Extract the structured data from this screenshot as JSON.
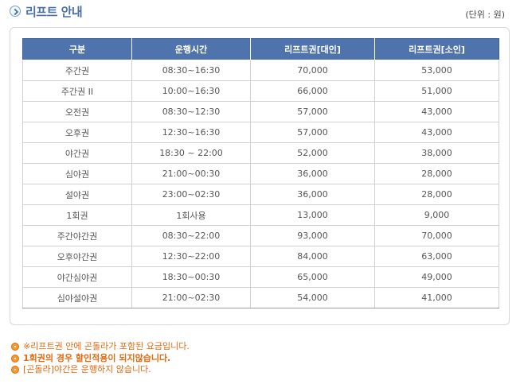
{
  "header": {
    "title": "리프트 안내",
    "unit_note": "(단위 : 원)"
  },
  "table": {
    "columns": [
      "구분",
      "운행시간",
      "리프트권[대인]",
      "리프트권[소인]"
    ],
    "rows": [
      [
        "주간권",
        "08:30~16:30",
        "70,000",
        "53,000"
      ],
      [
        "주간권 II",
        "10:00~16:30",
        "66,000",
        "51,000"
      ],
      [
        "오전권",
        "08:30~12:30",
        "57,000",
        "43,000"
      ],
      [
        "오후권",
        "12:30~16:30",
        "57,000",
        "43,000"
      ],
      [
        "야간권",
        "18:30 ~ 22:00",
        "52,000",
        "38,000"
      ],
      [
        "심야권",
        "21:00~00:30",
        "36,000",
        "28,000"
      ],
      [
        "설야권",
        "23:00~02:30",
        "36,000",
        "28,000"
      ],
      [
        "1회권",
        "1회사용",
        "13,000",
        "9,000"
      ],
      [
        "주간야간권",
        "08:30~22:00",
        "93,000",
        "70,000"
      ],
      [
        "오후야간권",
        "12:30~22:00",
        "84,000",
        "63,000"
      ],
      [
        "야간심야권",
        "18:30~00:30",
        "65,000",
        "49,000"
      ],
      [
        "심야설야권",
        "21:00~02:30",
        "54,000",
        "41,000"
      ]
    ]
  },
  "notes": [
    {
      "text": "※리프트권 안에 곤돌라가 포함된 요금입니다.",
      "bold": false
    },
    {
      "text": "1회권의 경우 할인적용이 되지않습니다.",
      "bold": true
    },
    {
      "text": "[곤돌라]야간은 운행하지 않습니다.",
      "bold": false
    }
  ],
  "colors": {
    "header_bg": "#4e73ad",
    "title": "#4a6fa0",
    "note": "#e46a10"
  },
  "icons": {
    "title_icon": "chevron-right-circle-icon",
    "note_bullet": "bullet-circle-icon"
  }
}
